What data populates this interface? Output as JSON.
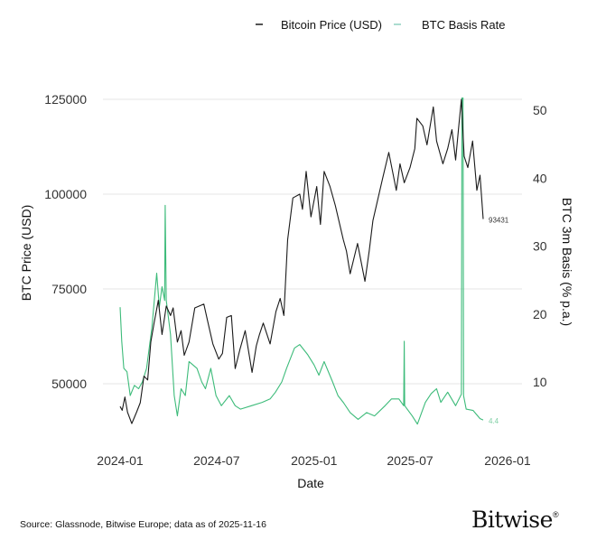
{
  "chart_data": {
    "type": "line",
    "title": "",
    "xlabel": "Date",
    "ylabel_left": "BTC Price (USD)",
    "ylabel_right": "BTC 3m Basis (% p.a.)",
    "x_ticks": [
      "2024-01",
      "2024-07",
      "2025-01",
      "2025-07",
      "2026-01"
    ],
    "y_left_ticks": [
      50000,
      75000,
      100000,
      125000
    ],
    "y_right_ticks": [
      10,
      20,
      30,
      40,
      50
    ],
    "ylim_left": [
      37000,
      125000
    ],
    "ylim_right": [
      2.4,
      51.6
    ],
    "xlim": [
      "2023-12-05",
      "2026-01-20"
    ],
    "grid": "horizontal (left axis)",
    "legend_placement": "top",
    "series": [
      {
        "name": "Bitcoin Price (USD)",
        "axis": "left",
        "color": "#1a1a1a",
        "end_label": "93431",
        "points": [
          [
            "2024-01-01",
            44000
          ],
          [
            "2024-01-05",
            43000
          ],
          [
            "2024-01-10",
            46500
          ],
          [
            "2024-01-15",
            42500
          ],
          [
            "2024-01-23",
            39500
          ],
          [
            "2024-02-01",
            42500
          ],
          [
            "2024-02-08",
            45000
          ],
          [
            "2024-02-15",
            52000
          ],
          [
            "2024-02-22",
            51000
          ],
          [
            "2024-02-28",
            61000
          ],
          [
            "2024-03-05",
            66000
          ],
          [
            "2024-03-13",
            72000
          ],
          [
            "2024-03-20",
            63000
          ],
          [
            "2024-03-28",
            70500
          ],
          [
            "2024-04-05",
            68000
          ],
          [
            "2024-04-10",
            70000
          ],
          [
            "2024-04-18",
            61000
          ],
          [
            "2024-04-25",
            64000
          ],
          [
            "2024-05-01",
            57500
          ],
          [
            "2024-05-10",
            61000
          ],
          [
            "2024-05-21",
            70000
          ],
          [
            "2024-06-07",
            71000
          ],
          [
            "2024-06-15",
            66000
          ],
          [
            "2024-06-24",
            60500
          ],
          [
            "2024-07-05",
            56500
          ],
          [
            "2024-07-12",
            58000
          ],
          [
            "2024-07-20",
            67500
          ],
          [
            "2024-07-29",
            68000
          ],
          [
            "2024-08-05",
            54000
          ],
          [
            "2024-08-14",
            59000
          ],
          [
            "2024-08-24",
            64000
          ],
          [
            "2024-09-06",
            53000
          ],
          [
            "2024-09-14",
            60000
          ],
          [
            "2024-09-20",
            63000
          ],
          [
            "2024-09-27",
            66000
          ],
          [
            "2024-10-10",
            60500
          ],
          [
            "2024-10-21",
            69000
          ],
          [
            "2024-10-29",
            72500
          ],
          [
            "2024-11-05",
            68000
          ],
          [
            "2024-11-12",
            88000
          ],
          [
            "2024-11-22",
            99000
          ],
          [
            "2024-12-05",
            100000
          ],
          [
            "2024-12-10",
            96000
          ],
          [
            "2024-12-17",
            106000
          ],
          [
            "2024-12-26",
            94000
          ],
          [
            "2025-01-06",
            102000
          ],
          [
            "2025-01-13",
            92000
          ],
          [
            "2025-01-20",
            106000
          ],
          [
            "2025-01-31",
            102000
          ],
          [
            "2025-02-10",
            97000
          ],
          [
            "2025-02-25",
            88000
          ],
          [
            "2025-03-03",
            85000
          ],
          [
            "2025-03-10",
            79000
          ],
          [
            "2025-03-24",
            87000
          ],
          [
            "2025-04-07",
            77000
          ],
          [
            "2025-04-15",
            85000
          ],
          [
            "2025-04-22",
            93000
          ],
          [
            "2025-05-10",
            104000
          ],
          [
            "2025-05-22",
            111000
          ],
          [
            "2025-06-05",
            101000
          ],
          [
            "2025-06-12",
            108000
          ],
          [
            "2025-06-20",
            103000
          ],
          [
            "2025-07-01",
            107000
          ],
          [
            "2025-07-10",
            112000
          ],
          [
            "2025-07-14",
            120000
          ],
          [
            "2025-07-25",
            118000
          ],
          [
            "2025-08-02",
            113000
          ],
          [
            "2025-08-14",
            123000
          ],
          [
            "2025-08-20",
            114000
          ],
          [
            "2025-09-01",
            108000
          ],
          [
            "2025-09-10",
            112000
          ],
          [
            "2025-09-18",
            117000
          ],
          [
            "2025-09-25",
            109000
          ],
          [
            "2025-10-01",
            118000
          ],
          [
            "2025-10-06",
            125000
          ],
          [
            "2025-10-11",
            110000
          ],
          [
            "2025-10-18",
            107000
          ],
          [
            "2025-10-27",
            114000
          ],
          [
            "2025-11-04",
            101000
          ],
          [
            "2025-11-10",
            105000
          ],
          [
            "2025-11-16",
            93431
          ]
        ]
      },
      {
        "name": "BTC Basis Rate",
        "axis": "right",
        "color": "#3dbb7a",
        "end_label": "4.4",
        "points": [
          [
            "2024-01-01",
            21
          ],
          [
            "2024-01-04",
            16
          ],
          [
            "2024-01-08",
            12
          ],
          [
            "2024-01-14",
            11.5
          ],
          [
            "2024-01-20",
            8
          ],
          [
            "2024-01-28",
            9.5
          ],
          [
            "2024-02-05",
            9
          ],
          [
            "2024-02-12",
            10
          ],
          [
            "2024-02-20",
            12
          ],
          [
            "2024-03-01",
            18
          ],
          [
            "2024-03-10",
            26
          ],
          [
            "2024-03-15",
            21
          ],
          [
            "2024-03-20",
            24
          ],
          [
            "2024-03-25",
            22
          ],
          [
            "2024-03-26",
            36
          ],
          [
            "2024-03-28",
            22
          ],
          [
            "2024-04-05",
            17
          ],
          [
            "2024-04-12",
            8
          ],
          [
            "2024-04-18",
            5
          ],
          [
            "2024-04-25",
            9
          ],
          [
            "2024-05-03",
            8
          ],
          [
            "2024-05-10",
            13
          ],
          [
            "2024-05-25",
            12
          ],
          [
            "2024-06-03",
            10
          ],
          [
            "2024-06-10",
            9
          ],
          [
            "2024-06-20",
            12
          ],
          [
            "2024-06-30",
            8
          ],
          [
            "2024-07-10",
            6.5
          ],
          [
            "2024-07-25",
            8
          ],
          [
            "2024-08-05",
            6.5
          ],
          [
            "2024-08-15",
            6
          ],
          [
            "2024-09-05",
            6.5
          ],
          [
            "2024-09-25",
            7
          ],
          [
            "2024-10-10",
            7.5
          ],
          [
            "2024-10-20",
            8.5
          ],
          [
            "2024-11-01",
            10
          ],
          [
            "2024-11-10",
            12
          ],
          [
            "2024-11-25",
            15
          ],
          [
            "2024-12-05",
            15.5
          ],
          [
            "2024-12-20",
            14
          ],
          [
            "2025-01-01",
            12.5
          ],
          [
            "2025-01-10",
            11
          ],
          [
            "2025-01-20",
            13
          ],
          [
            "2025-02-05",
            10
          ],
          [
            "2025-02-15",
            8
          ],
          [
            "2025-02-25",
            7
          ],
          [
            "2025-03-10",
            5.5
          ],
          [
            "2025-03-25",
            4.5
          ],
          [
            "2025-04-10",
            5.5
          ],
          [
            "2025-04-25",
            5
          ],
          [
            "2025-05-15",
            6.5
          ],
          [
            "2025-05-27",
            7.5
          ],
          [
            "2025-06-10",
            7.5
          ],
          [
            "2025-06-19",
            6.5
          ],
          [
            "2025-06-20",
            16
          ],
          [
            "2025-06-21",
            6.5
          ],
          [
            "2025-07-05",
            5
          ],
          [
            "2025-07-15",
            3.8
          ],
          [
            "2025-07-30",
            7
          ],
          [
            "2025-08-10",
            8.3
          ],
          [
            "2025-08-20",
            9
          ],
          [
            "2025-08-28",
            7
          ],
          [
            "2025-09-10",
            8.5
          ],
          [
            "2025-09-25",
            6.5
          ],
          [
            "2025-10-06",
            8.2
          ],
          [
            "2025-10-07",
            52
          ],
          [
            "2025-10-09",
            52
          ],
          [
            "2025-10-10",
            8
          ],
          [
            "2025-10-15",
            6
          ],
          [
            "2025-10-28",
            5.8
          ],
          [
            "2025-11-10",
            4.6
          ],
          [
            "2025-11-16",
            4.4
          ]
        ]
      }
    ]
  },
  "footer": {
    "source": "Source: Glassnode, Bitwise Europe; data as of 2025-11-16",
    "logo": "Bitwise"
  }
}
